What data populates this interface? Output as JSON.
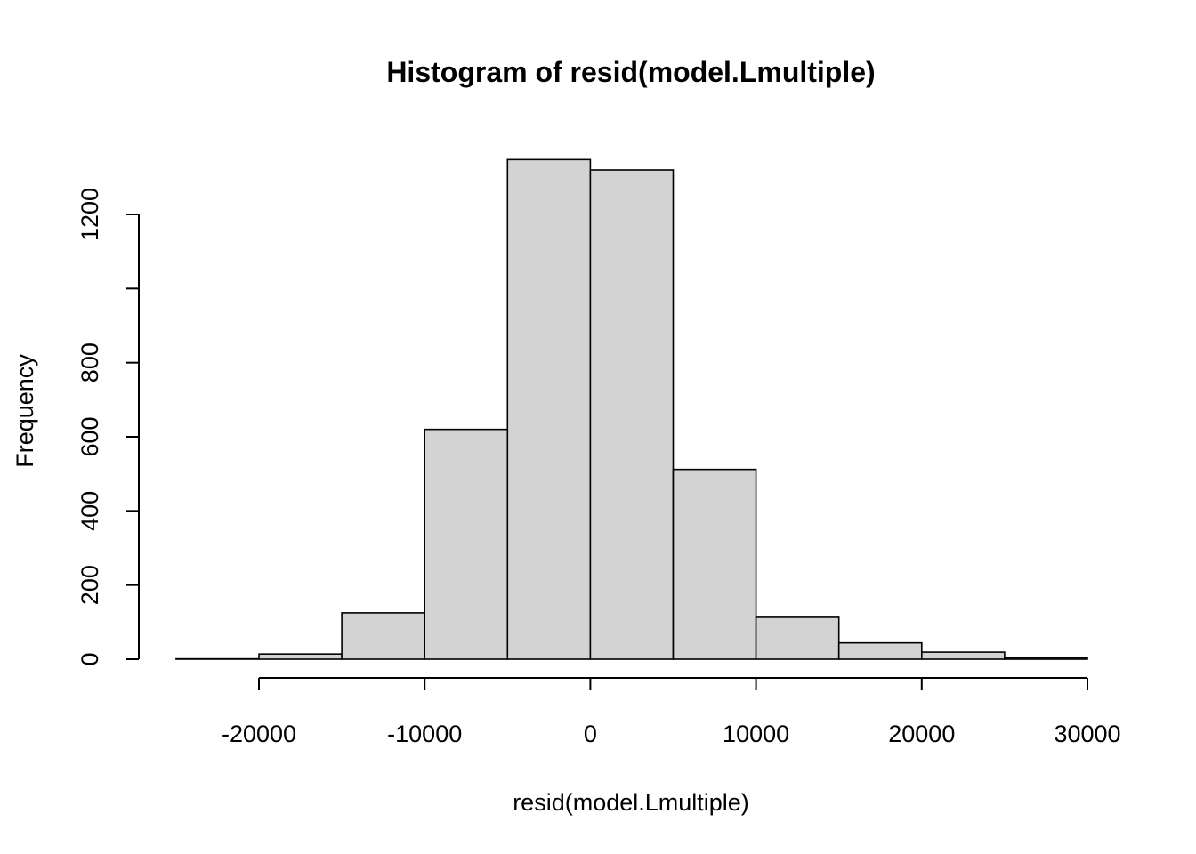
{
  "chart_data": {
    "type": "bar",
    "title": "Histogram of resid(model.Lmultiple)",
    "xlabel": "resid(model.Lmultiple)",
    "ylabel": "Frequency",
    "bins": [
      {
        "from": -25000,
        "to": -20000,
        "count": 1
      },
      {
        "from": -20000,
        "to": -15000,
        "count": 14
      },
      {
        "from": -15000,
        "to": -10000,
        "count": 125
      },
      {
        "from": -10000,
        "to": -5000,
        "count": 620
      },
      {
        "from": -5000,
        "to": 0,
        "count": 1348
      },
      {
        "from": 0,
        "to": 5000,
        "count": 1320
      },
      {
        "from": 5000,
        "to": 10000,
        "count": 512
      },
      {
        "from": 10000,
        "to": 15000,
        "count": 113
      },
      {
        "from": 15000,
        "to": 20000,
        "count": 44
      },
      {
        "from": 20000,
        "to": 25000,
        "count": 19
      },
      {
        "from": 25000,
        "to": 30000,
        "count": 4
      }
    ],
    "xlim": [
      -25000,
      30000
    ],
    "ylim": [
      0,
      1348
    ],
    "x_ticks": [
      -20000,
      -10000,
      0,
      10000,
      20000,
      30000
    ],
    "x_tick_labels": [
      "-20000",
      "-10000",
      "0",
      "10000",
      "20000",
      "30000"
    ],
    "y_ticks": [
      0,
      200,
      400,
      600,
      800,
      1000,
      1200
    ],
    "y_tick_labels": [
      "0",
      "200",
      "400",
      "600",
      "800",
      "",
      "1200"
    ],
    "bar_fill": "#d3d3d3",
    "bar_stroke": "#000000",
    "grid": false,
    "legend": "none"
  }
}
